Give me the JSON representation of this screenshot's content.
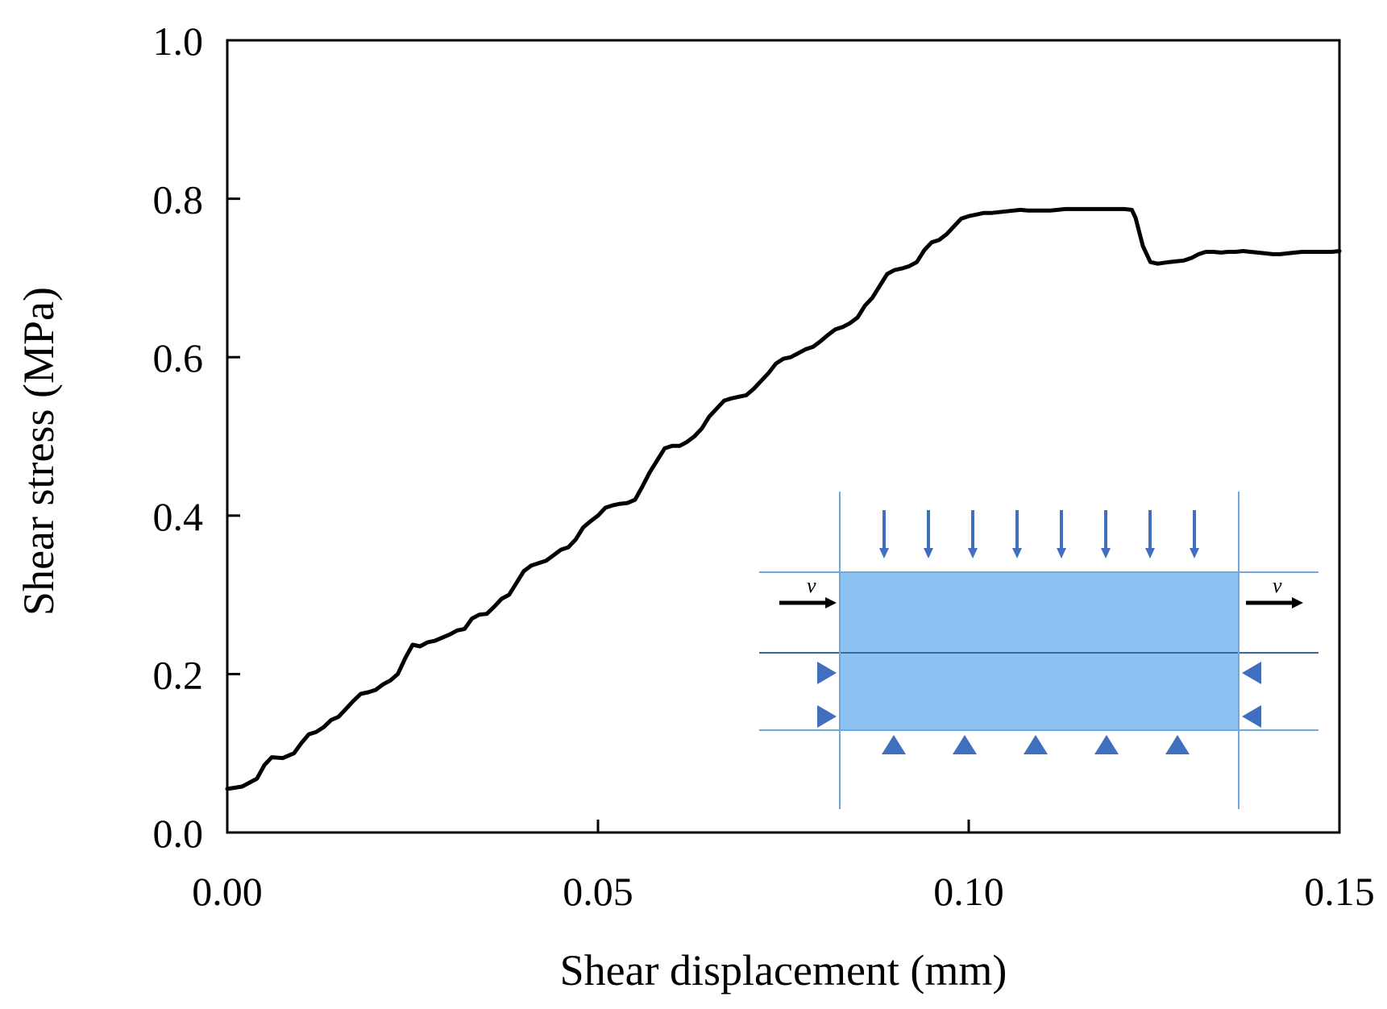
{
  "chart_data": {
    "type": "line",
    "title": "",
    "xlabel": "Shear displacement (mm)",
    "ylabel": "Shear stress (MPa)",
    "xlim": [
      0,
      0.15
    ],
    "ylim": [
      0,
      1.0
    ],
    "grid": false,
    "x_ticks": [
      0,
      0.05,
      0.1,
      0.15
    ],
    "x_tick_labels": [
      "0.00",
      "0.05",
      "0.10",
      "0.15"
    ],
    "y_ticks": [
      0,
      0.2,
      0.4,
      0.6,
      0.8,
      1.0
    ],
    "y_tick_labels": [
      "0.0",
      "0.2",
      "0.4",
      "0.6",
      "0.8",
      "1.0"
    ],
    "series": [
      {
        "name": "Shear stress",
        "color": "#000000",
        "x": [
          0,
          0.002,
          0.004,
          0.005,
          0.006,
          0.0075,
          0.009,
          0.01,
          0.011,
          0.012,
          0.013,
          0.014,
          0.015,
          0.016,
          0.017,
          0.018,
          0.019,
          0.02,
          0.021,
          0.022,
          0.023,
          0.024,
          0.025,
          0.026,
          0.027,
          0.028,
          0.03,
          0.031,
          0.032,
          0.033,
          0.034,
          0.035,
          0.036,
          0.037,
          0.038,
          0.039,
          0.04,
          0.041,
          0.042,
          0.043,
          0.044,
          0.045,
          0.046,
          0.047,
          0.048,
          0.049,
          0.05,
          0.051,
          0.052,
          0.053,
          0.054,
          0.055,
          0.056,
          0.057,
          0.058,
          0.059,
          0.06,
          0.061,
          0.062,
          0.063,
          0.064,
          0.065,
          0.066,
          0.067,
          0.068,
          0.069,
          0.07,
          0.071,
          0.072,
          0.073,
          0.074,
          0.075,
          0.076,
          0.077,
          0.078,
          0.079,
          0.08,
          0.081,
          0.082,
          0.083,
          0.084,
          0.085,
          0.086,
          0.087,
          0.088,
          0.089,
          0.09,
          0.091,
          0.092,
          0.093,
          0.094,
          0.095,
          0.096,
          0.097,
          0.098,
          0.099,
          0.1,
          0.101,
          0.102,
          0.103,
          0.104,
          0.105,
          0.106,
          0.107,
          0.108,
          0.109,
          0.11,
          0.111,
          0.112,
          0.113,
          0.114,
          0.115,
          0.116,
          0.117,
          0.118,
          0.119,
          0.12,
          0.121,
          0.122,
          0.1225,
          0.1235,
          0.1245,
          0.1255,
          0.127,
          0.128,
          0.129,
          0.13,
          0.131,
          0.132,
          0.133,
          0.134,
          0.135,
          0.136,
          0.137,
          0.138,
          0.139,
          0.14,
          0.141,
          0.142,
          0.143,
          0.144,
          0.145,
          0.146,
          0.147,
          0.148,
          0.149,
          0.15
        ],
        "values": [
          0.055,
          0.058,
          0.068,
          0.085,
          0.095,
          0.094,
          0.1,
          0.113,
          0.124,
          0.127,
          0.133,
          0.142,
          0.146,
          0.156,
          0.166,
          0.175,
          0.177,
          0.18,
          0.187,
          0.192,
          0.2,
          0.22,
          0.237,
          0.235,
          0.24,
          0.242,
          0.25,
          0.255,
          0.257,
          0.27,
          0.275,
          0.276,
          0.285,
          0.295,
          0.3,
          0.315,
          0.33,
          0.337,
          0.34,
          0.343,
          0.35,
          0.357,
          0.36,
          0.37,
          0.385,
          0.393,
          0.4,
          0.41,
          0.413,
          0.415,
          0.416,
          0.42,
          0.437,
          0.455,
          0.47,
          0.485,
          0.488,
          0.488,
          0.493,
          0.5,
          0.51,
          0.525,
          0.535,
          0.545,
          0.548,
          0.55,
          0.552,
          0.56,
          0.57,
          0.58,
          0.592,
          0.598,
          0.6,
          0.605,
          0.61,
          0.613,
          0.62,
          0.628,
          0.635,
          0.638,
          0.643,
          0.65,
          0.665,
          0.675,
          0.69,
          0.705,
          0.71,
          0.712,
          0.715,
          0.72,
          0.735,
          0.745,
          0.748,
          0.755,
          0.765,
          0.775,
          0.778,
          0.78,
          0.782,
          0.782,
          0.783,
          0.784,
          0.785,
          0.786,
          0.785,
          0.785,
          0.785,
          0.785,
          0.786,
          0.787,
          0.787,
          0.787,
          0.787,
          0.787,
          0.787,
          0.787,
          0.787,
          0.787,
          0.786,
          0.776,
          0.74,
          0.72,
          0.718,
          0.72,
          0.721,
          0.722,
          0.725,
          0.73,
          0.733,
          0.733,
          0.732,
          0.733,
          0.733,
          0.734,
          0.733,
          0.732,
          0.731,
          0.73,
          0.73,
          0.731,
          0.732,
          0.733,
          0.733,
          0.733,
          0.733,
          0.733,
          0.734
        ]
      }
    ],
    "inset": {
      "label_left": "v",
      "label_right": "v",
      "specimen_color": "#8cc3f2",
      "line_color": "#6fa8dc",
      "symbol_color": "#3f6fbe",
      "arrow_color": "#3f6fbe"
    }
  }
}
